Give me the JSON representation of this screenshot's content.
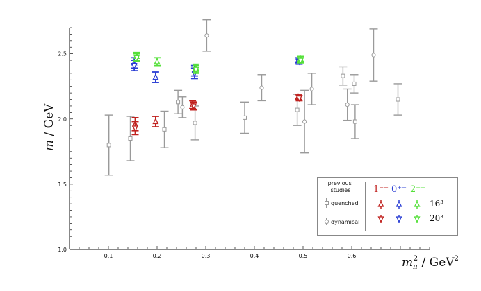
{
  "chart_data": {
    "type": "scatter",
    "title": "",
    "xlabel": "m_π² / GeV²",
    "ylabel": "m / GeV",
    "xlim": [
      0.02,
      0.76
    ],
    "ylim": [
      1.0,
      2.7
    ],
    "x_ticks": [
      "0.1",
      "0.2",
      "0.3",
      "0.4",
      "0.5",
      "0.6"
    ],
    "y_ticks": [
      "1.0",
      "1.5",
      "2.0",
      "2.5"
    ],
    "grid": false,
    "legend_position": "bottom-right",
    "legend": {
      "previous_studies_label": "previous\nstudies",
      "quenched_label": "quenched",
      "dynamical_label": "dynamical",
      "quantum_numbers": [
        "1⁻⁺",
        "0⁺⁻",
        "2⁺⁻"
      ],
      "volumes": [
        "16³",
        "20³"
      ]
    },
    "colors": {
      "1-+": "#c0221f",
      "0+-": "#2b3fd4",
      "2+-": "#55e03a",
      "previous": "#9a9a9a"
    },
    "series": [
      {
        "name": "quenched",
        "marker": "square",
        "color": "#9a9a9a",
        "points": [
          {
            "x": 0.101,
            "y": 1.8,
            "err": 0.23
          },
          {
            "x": 0.145,
            "y": 1.85,
            "err": 0.17
          },
          {
            "x": 0.215,
            "y": 1.92,
            "err": 0.14
          },
          {
            "x": 0.243,
            "y": 2.13,
            "err": 0.09
          },
          {
            "x": 0.278,
            "y": 1.97,
            "err": 0.13
          },
          {
            "x": 0.38,
            "y": 2.01,
            "err": 0.12
          },
          {
            "x": 0.488,
            "y": 2.07,
            "err": 0.12
          },
          {
            "x": 0.582,
            "y": 2.33,
            "err": 0.07
          },
          {
            "x": 0.605,
            "y": 2.27,
            "err": 0.07
          },
          {
            "x": 0.607,
            "y": 1.98,
            "err": 0.13
          },
          {
            "x": 0.695,
            "y": 2.15,
            "err": 0.12
          }
        ]
      },
      {
        "name": "dynamical",
        "marker": "circle",
        "color": "#9a9a9a",
        "points": [
          {
            "x": 0.252,
            "y": 2.09,
            "err": 0.08
          },
          {
            "x": 0.302,
            "y": 2.64,
            "err": 0.12
          },
          {
            "x": 0.415,
            "y": 2.24,
            "err": 0.1
          },
          {
            "x": 0.503,
            "y": 1.98,
            "err": 0.24
          },
          {
            "x": 0.518,
            "y": 2.23,
            "err": 0.12
          },
          {
            "x": 0.591,
            "y": 2.11,
            "err": 0.12
          },
          {
            "x": 0.645,
            "y": 2.49,
            "err": 0.2
          }
        ]
      },
      {
        "name": "1⁻⁺ 16³",
        "marker": "triangle-up",
        "color": "#c0221f",
        "points": [
          {
            "x": 0.155,
            "y": 1.96,
            "err": 0.05
          },
          {
            "x": 0.197,
            "y": 1.98,
            "err": 0.04
          },
          {
            "x": 0.273,
            "y": 2.11,
            "err": 0.03
          },
          {
            "x": 0.49,
            "y": 2.17,
            "err": 0.02
          }
        ]
      },
      {
        "name": "1⁻⁺ 20³",
        "marker": "triangle-down",
        "color": "#c0221f",
        "points": [
          {
            "x": 0.155,
            "y": 1.93,
            "err": 0.05
          },
          {
            "x": 0.275,
            "y": 2.1,
            "err": 0.03
          },
          {
            "x": 0.492,
            "y": 2.16,
            "err": 0.02
          }
        ]
      },
      {
        "name": "0⁺⁻ 16³",
        "marker": "triangle-up",
        "color": "#2b3fd4",
        "points": [
          {
            "x": 0.153,
            "y": 2.43,
            "err": 0.04
          },
          {
            "x": 0.197,
            "y": 2.32,
            "err": 0.04
          },
          {
            "x": 0.277,
            "y": 2.37,
            "err": 0.04
          },
          {
            "x": 0.49,
            "y": 2.45,
            "err": 0.02
          }
        ]
      },
      {
        "name": "0⁺⁻ 20³",
        "marker": "triangle-down",
        "color": "#2b3fd4",
        "points": [
          {
            "x": 0.153,
            "y": 2.41,
            "err": 0.04
          },
          {
            "x": 0.277,
            "y": 2.35,
            "err": 0.04
          },
          {
            "x": 0.492,
            "y": 2.44,
            "err": 0.02
          }
        ]
      },
      {
        "name": "2⁺⁻ 16³",
        "marker": "triangle-up",
        "color": "#55e03a",
        "points": [
          {
            "x": 0.158,
            "y": 2.48,
            "err": 0.03
          },
          {
            "x": 0.2,
            "y": 2.44,
            "err": 0.03
          },
          {
            "x": 0.28,
            "y": 2.39,
            "err": 0.03
          },
          {
            "x": 0.495,
            "y": 2.46,
            "err": 0.02
          }
        ]
      },
      {
        "name": "2⁺⁻ 20³",
        "marker": "triangle-down",
        "color": "#55e03a",
        "points": [
          {
            "x": 0.158,
            "y": 2.47,
            "err": 0.03
          },
          {
            "x": 0.28,
            "y": 2.38,
            "err": 0.03
          },
          {
            "x": 0.495,
            "y": 2.45,
            "err": 0.02
          }
        ]
      }
    ]
  }
}
